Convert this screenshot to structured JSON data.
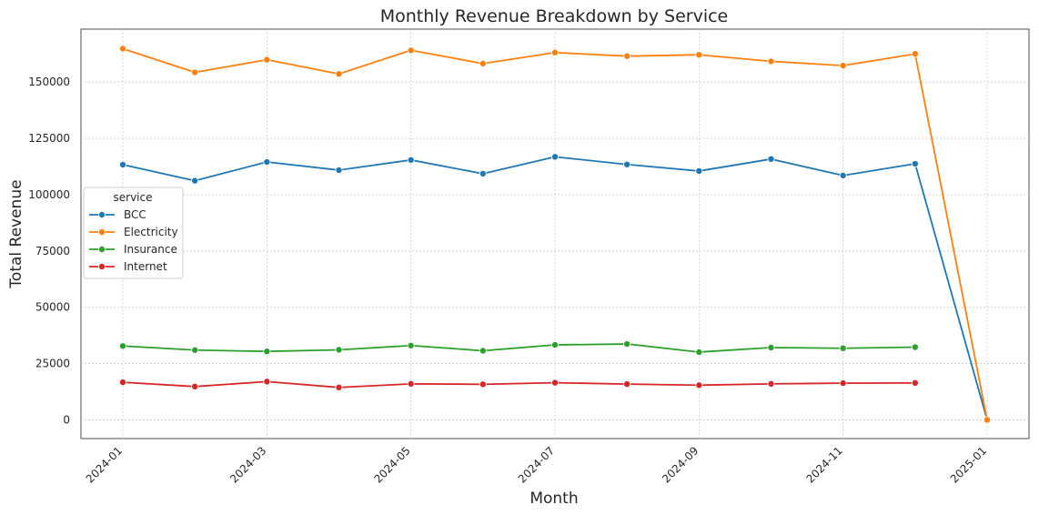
{
  "chart_data": {
    "type": "line",
    "title": "Monthly Revenue Breakdown by Service",
    "xlabel": "Month",
    "ylabel": "Total Revenue",
    "x": [
      "2024-01",
      "2024-02",
      "2024-03",
      "2024-04",
      "2024-05",
      "2024-06",
      "2024-07",
      "2024-08",
      "2024-09",
      "2024-10",
      "2024-11",
      "2024-12",
      "2025-01"
    ],
    "x_ticks": [
      "2024-01",
      "2024-03",
      "2024-05",
      "2024-07",
      "2024-09",
      "2024-11",
      "2025-01"
    ],
    "y_ticks": [
      0,
      25000,
      50000,
      75000,
      100000,
      125000,
      150000
    ],
    "ylim": [
      -8300,
      173500
    ],
    "grid": true,
    "legend": {
      "title": "service",
      "placement": "center-left"
    },
    "series": [
      {
        "name": "BCC",
        "color": "#1f77b4",
        "values": [
          113300,
          106200,
          114500,
          110900,
          115400,
          109300,
          116800,
          113400,
          110500,
          115800,
          108500,
          113700,
          0
        ]
      },
      {
        "name": "Electricity",
        "color": "#ff7f0e",
        "values": [
          164800,
          154300,
          159900,
          153600,
          164100,
          158200,
          163100,
          161500,
          162100,
          159200,
          157300,
          162500,
          0
        ]
      },
      {
        "name": "Insurance",
        "color": "#2ca02c",
        "values": [
          32800,
          31000,
          30400,
          31100,
          33000,
          30700,
          33300,
          33700,
          30100,
          32100,
          31800,
          32300,
          null
        ]
      },
      {
        "name": "Internet",
        "color": "#d62728",
        "values": [
          16700,
          14800,
          17000,
          14400,
          16000,
          15800,
          16500,
          15900,
          15400,
          16000,
          16300,
          16400,
          null
        ]
      }
    ]
  }
}
